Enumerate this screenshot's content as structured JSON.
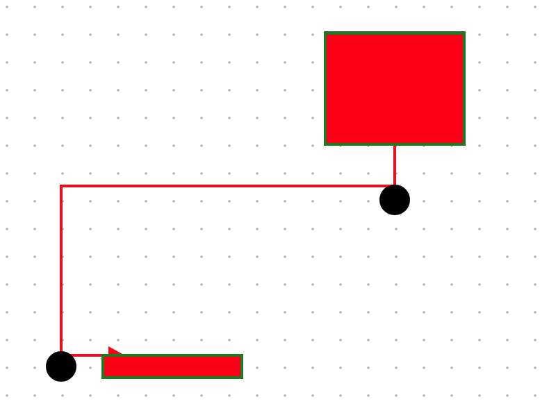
{
  "canvas": {
    "background": "#ffffff",
    "grid_dot_color": "#a6a6a6"
  },
  "shapes": {
    "top_box": {
      "fill": "#ff0016",
      "stroke": "#1e7a1e"
    },
    "bottom_box": {
      "fill": "#ff0016",
      "stroke": "#1e7a1e"
    }
  },
  "connector": {
    "stroke": "#e8101e",
    "arrow_fill": "#ff0016"
  },
  "nodes": {
    "fill": "#000000"
  }
}
